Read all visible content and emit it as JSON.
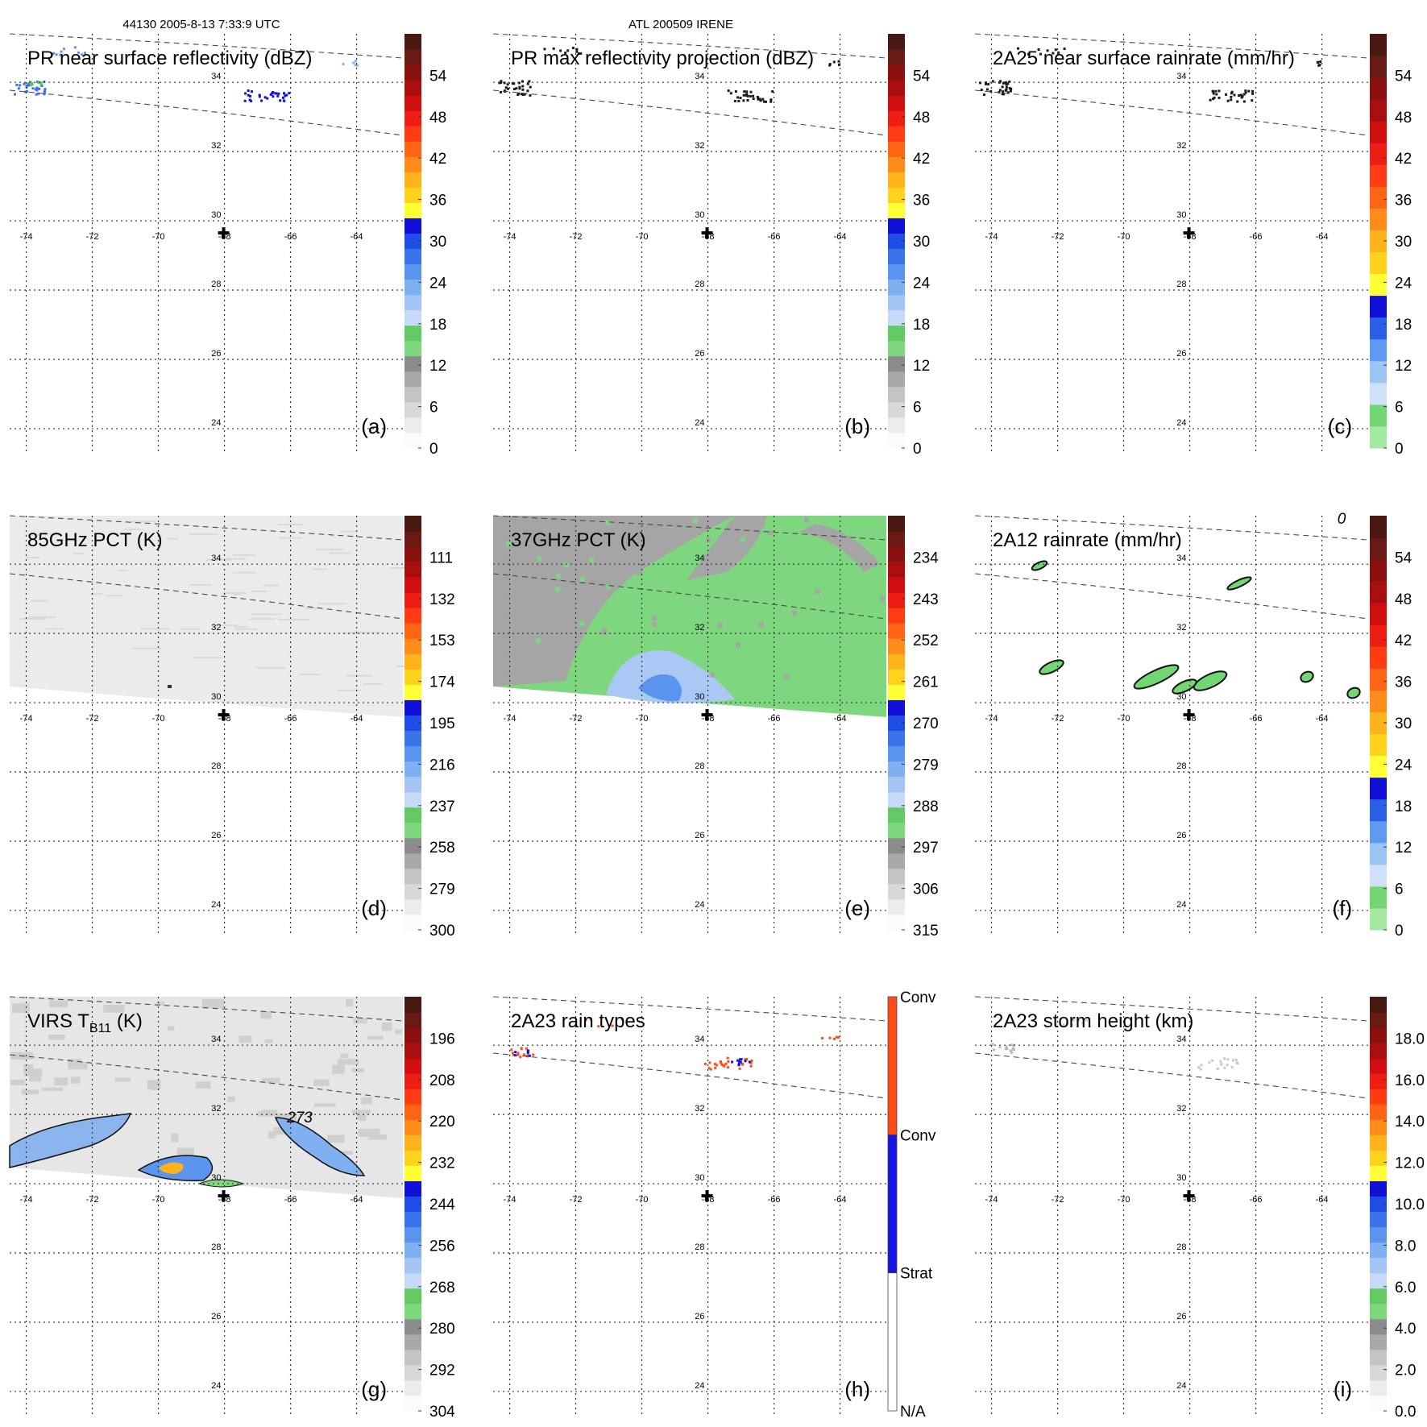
{
  "header": {
    "orbit_time": "44130 2005-8-13 7:33:9 UTC",
    "storm": "ATL 200509 IRENE"
  },
  "map": {
    "lon_labels": [
      "-74",
      "-72",
      "-70",
      "-68",
      "-66",
      "-64"
    ],
    "lat_labels": [
      "24",
      "26",
      "28",
      "30",
      "32",
      "34"
    ],
    "lon_grid": [
      -74,
      -72,
      -70,
      -68,
      -66,
      -64
    ],
    "lat_grid": [
      24,
      26,
      28,
      30,
      32,
      34
    ],
    "lon_range": [
      -74.5,
      -62.6
    ],
    "lat_range": [
      23.3,
      35.4
    ],
    "storm_center": {
      "lon": -68.0,
      "lat": 29.65
    }
  },
  "chart_data": [
    {
      "type": "heatmap",
      "panel": "(a)",
      "title": "PR near surface reflectivity (dBZ)",
      "colorbar": {
        "ticks": [
          "0",
          "6",
          "12",
          "18",
          "24",
          "30",
          "36",
          "42",
          "48",
          "54"
        ],
        "max": 60
      },
      "swath": "narrow",
      "field": "pr"
    },
    {
      "type": "heatmap",
      "panel": "(b)",
      "title": "PR max reflectivity projection (dBZ)",
      "colorbar": {
        "ticks": [
          "0",
          "6",
          "12",
          "18",
          "24",
          "30",
          "36",
          "42",
          "48",
          "54"
        ],
        "max": 60
      },
      "swath": "narrow",
      "field": "pr-max"
    },
    {
      "type": "heatmap",
      "panel": "(c)",
      "title": "2A25 near surface rainrate (mm/hr)",
      "colorbar": {
        "ticks": [
          "0",
          "6",
          "12",
          "18",
          "24",
          "30",
          "36",
          "42",
          "48",
          "54"
        ],
        "max": 60
      },
      "swath": "narrow",
      "field": "rain"
    },
    {
      "type": "heatmap",
      "panel": "(d)",
      "title": "85GHz PCT (K)",
      "colorbar": {
        "ticks": [
          "300",
          "279",
          "258",
          "237",
          "216",
          "195",
          "174",
          "153",
          "132",
          "111"
        ],
        "max": 90
      },
      "swath": "wide",
      "field": "pct85"
    },
    {
      "type": "heatmap",
      "panel": "(e)",
      "title": "37GHz PCT (K)",
      "colorbar": {
        "ticks": [
          "315",
          "306",
          "297",
          "288",
          "279",
          "270",
          "261",
          "252",
          "243",
          "234"
        ],
        "max": 225
      },
      "swath": "wide",
      "field": "pct37"
    },
    {
      "type": "heatmap",
      "panel": "(f)",
      "title": "2A12 rainrate (mm/hr)",
      "colorbar": {
        "ticks": [
          "0",
          "6",
          "12",
          "18",
          "24",
          "30",
          "36",
          "42",
          "48",
          "54"
        ],
        "max": 60
      },
      "swath": "wide",
      "field": "tmi-rain",
      "contour_label": "0"
    },
    {
      "type": "heatmap",
      "panel": "(g)",
      "title_main": "VIRS T",
      "title_sub": "B11",
      "title_unit": " (K)",
      "colorbar": {
        "ticks": [
          "304",
          "292",
          "280",
          "268",
          "256",
          "244",
          "232",
          "220",
          "208",
          "196"
        ],
        "max": 184
      },
      "swath": "wide",
      "field": "virs",
      "contour_label": "273"
    },
    {
      "type": "heatmap",
      "panel": "(h)",
      "title": "2A23 rain types",
      "colorbar": {
        "categories": [
          "N/A",
          "Strat",
          "Conv"
        ],
        "colors": [
          "#ffffff",
          "#1414e6",
          "#ff4b14"
        ]
      },
      "swath": "narrow",
      "field": "raintype"
    },
    {
      "type": "heatmap",
      "panel": "(i)",
      "title": "2A23 storm height (km)",
      "colorbar": {
        "ticks": [
          "0.0",
          "2.0",
          "4.0",
          "6.0",
          "8.0",
          "10.0",
          "12.0",
          "14.0",
          "16.0",
          "18.0"
        ],
        "max": 20
      },
      "swath": "narrow",
      "field": "height"
    }
  ],
  "colors": {
    "scale": [
      "#fbfbfb",
      "#ececec",
      "#d8d8d8",
      "#c4c4c4",
      "#a8a8a8",
      "#8c8c8c",
      "#7ed67e",
      "#63c963",
      "#c6daf7",
      "#a5c6f5",
      "#7fb0f2",
      "#5b94ef",
      "#3a73ea",
      "#1e4ee6",
      "#1010d8",
      "#ffff33",
      "#ffd21e",
      "#ffb31a",
      "#ff8c1a",
      "#ff6414",
      "#ff3c14",
      "#ef1e14",
      "#cf0f10",
      "#a80e0e",
      "#8a1010",
      "#6a1a14",
      "#4a1812"
    ],
    "rain_scale": [
      "#a4e8a4",
      "#72d672",
      "#cfe0f8",
      "#9cc4f4",
      "#5e9af0",
      "#2a60e6",
      "#1010d8",
      "#ffff33",
      "#ffd21e",
      "#ffb31a",
      "#ff8c1a",
      "#ff6414",
      "#ff3c14",
      "#ef1e14",
      "#cf0f10",
      "#a80e0e",
      "#8a1010",
      "#6a1a14",
      "#4a1812"
    ],
    "green_mid": "#7ed67e",
    "gray_swath": "#a5a5a5"
  }
}
